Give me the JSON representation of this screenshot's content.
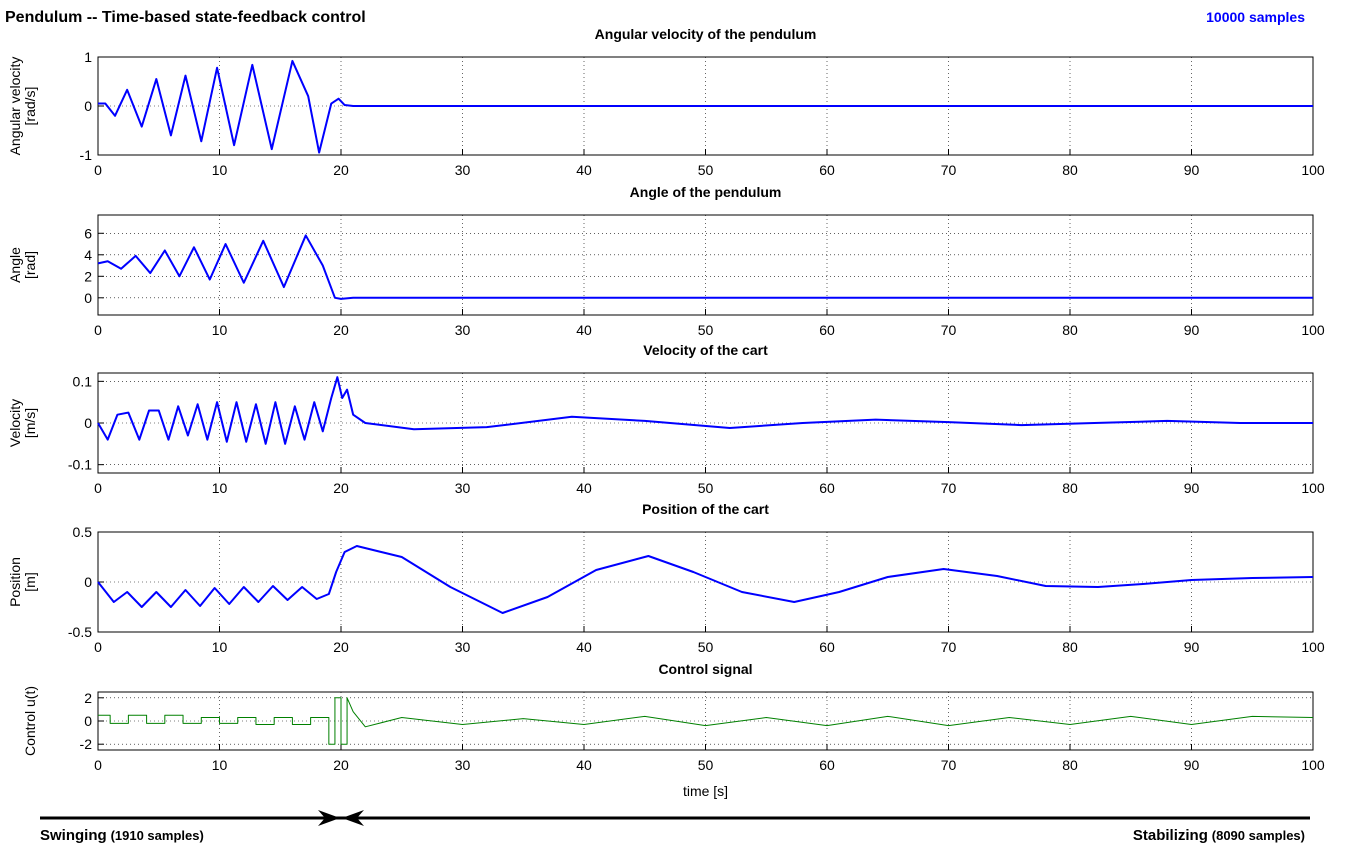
{
  "header": {
    "title": "Pendulum -- Time-based state-feedback control",
    "samples": "10000 samples"
  },
  "chart_data": [
    {
      "type": "line",
      "title": "Angular velocity of the pendulum",
      "ylabel": [
        "Angular velocity",
        "[rad/s]"
      ],
      "xlim": [
        0,
        100
      ],
      "xticks": [
        0,
        10,
        20,
        30,
        40,
        50,
        60,
        70,
        80,
        90,
        100
      ],
      "ylim": [
        -1,
        1
      ],
      "yticks": [
        -1,
        0,
        1
      ],
      "grid": true,
      "x": [
        0,
        0.6,
        1.4,
        2.4,
        3.6,
        4.8,
        6.0,
        7.2,
        8.5,
        9.8,
        11.2,
        12.7,
        14.3,
        16.0,
        17.3,
        18.2,
        19.2,
        19.8,
        20.3,
        21,
        30,
        40,
        50,
        60,
        70,
        80,
        90,
        100
      ],
      "series": [
        {
          "color": "#0000ff",
          "values": [
            0.05,
            0.05,
            -0.2,
            0.33,
            -0.42,
            0.55,
            -0.6,
            0.62,
            -0.72,
            0.78,
            -0.8,
            0.84,
            -0.88,
            0.92,
            0.2,
            -0.95,
            0.05,
            0.15,
            0.02,
            0,
            0,
            0,
            0,
            0,
            0,
            0,
            0,
            0
          ]
        }
      ]
    },
    {
      "type": "line",
      "title": "Angle of the pendulum",
      "ylabel": [
        "Angle",
        "[rad]"
      ],
      "xlim": [
        0,
        100
      ],
      "xticks": [
        0,
        10,
        20,
        30,
        40,
        50,
        60,
        70,
        80,
        90,
        100
      ],
      "ylim": [
        -1.6,
        7.7
      ],
      "yticks": [
        0,
        2,
        4,
        6
      ],
      "grid": true,
      "x": [
        0,
        0.8,
        1.9,
        3.1,
        4.3,
        5.5,
        6.7,
        7.9,
        9.2,
        10.5,
        12,
        13.6,
        15.3,
        17.1,
        18.5,
        19.5,
        20,
        21,
        100
      ],
      "series": [
        {
          "color": "#0000ff",
          "values": [
            3.2,
            3.4,
            2.7,
            3.9,
            2.3,
            4.4,
            2.0,
            4.7,
            1.7,
            5.0,
            1.4,
            5.3,
            1.0,
            5.8,
            3,
            0,
            -0.1,
            0,
            0
          ]
        }
      ]
    },
    {
      "type": "line",
      "title": "Velocity of the cart",
      "ylabel": [
        "Velocity",
        "[m/s]"
      ],
      "xlim": [
        0,
        100
      ],
      "xticks": [
        0,
        10,
        20,
        30,
        40,
        50,
        60,
        70,
        80,
        90,
        100
      ],
      "ylim": [
        -0.12,
        0.12
      ],
      "yticks": [
        -0.1,
        0,
        0.1
      ],
      "grid": true,
      "x": [
        0,
        0.8,
        1.6,
        2.5,
        3.4,
        4.2,
        5,
        5.8,
        6.6,
        7.4,
        8.2,
        9,
        9.8,
        10.6,
        11.4,
        12.2,
        13,
        13.8,
        14.6,
        15.4,
        16.2,
        17,
        17.8,
        18.5,
        19.2,
        19.7,
        20.1,
        20.5,
        21,
        22,
        26,
        32,
        39,
        45,
        52,
        58,
        64,
        70,
        76,
        82,
        88,
        94,
        100
      ],
      "series": [
        {
          "color": "#0000ff",
          "values": [
            0,
            -0.04,
            0.02,
            0.025,
            -0.04,
            0.03,
            0.03,
            -0.04,
            0.04,
            -0.03,
            0.045,
            -0.04,
            0.05,
            -0.045,
            0.05,
            -0.045,
            0.045,
            -0.05,
            0.05,
            -0.05,
            0.04,
            -0.04,
            0.05,
            -0.02,
            0.06,
            0.11,
            0.06,
            0.08,
            0.02,
            0,
            -0.015,
            -0.01,
            0.015,
            0.005,
            -0.012,
            0,
            0.008,
            0.002,
            -0.005,
            0,
            0.005,
            0,
            0
          ]
        }
      ]
    },
    {
      "type": "line",
      "title": "Position of the cart",
      "ylabel": [
        "Position",
        "[m]"
      ],
      "xlim": [
        0,
        100
      ],
      "xticks": [
        0,
        10,
        20,
        30,
        40,
        50,
        60,
        70,
        80,
        90,
        100
      ],
      "ylim": [
        -0.5,
        0.5
      ],
      "yticks": [
        -0.5,
        0,
        0.5
      ],
      "grid": true,
      "x": [
        0,
        1.3,
        2.4,
        3.6,
        4.8,
        6,
        7.2,
        8.4,
        9.6,
        10.8,
        12,
        13.2,
        14.4,
        15.6,
        16.8,
        18,
        19,
        19.6,
        20.3,
        21.3,
        25,
        29,
        33.3,
        37,
        41,
        45.3,
        49,
        53,
        57.3,
        61,
        65,
        69.6,
        74,
        78,
        82.3,
        86,
        90,
        95,
        100
      ],
      "series": [
        {
          "color": "#0000ff",
          "values": [
            0,
            -0.2,
            -0.1,
            -0.25,
            -0.1,
            -0.25,
            -0.08,
            -0.24,
            -0.06,
            -0.22,
            -0.05,
            -0.2,
            -0.04,
            -0.18,
            -0.05,
            -0.17,
            -0.12,
            0.1,
            0.3,
            0.36,
            0.25,
            -0.05,
            -0.31,
            -0.15,
            0.12,
            0.26,
            0.1,
            -0.1,
            -0.2,
            -0.1,
            0.05,
            0.13,
            0.06,
            -0.04,
            -0.05,
            -0.02,
            0.02,
            0.04,
            0.05
          ]
        }
      ]
    },
    {
      "type": "line",
      "title": "Control signal",
      "ylabel": [
        "Control u(t)"
      ],
      "xlabel": "time [s]",
      "xlim": [
        0,
        100
      ],
      "xticks": [
        0,
        10,
        20,
        30,
        40,
        50,
        60,
        70,
        80,
        90,
        100
      ],
      "ylim": [
        -2.5,
        2.5
      ],
      "yticks": [
        -2,
        0,
        2
      ],
      "grid": true,
      "x": [
        0,
        1,
        1,
        2.5,
        2.5,
        4,
        4,
        5.5,
        5.5,
        7,
        7,
        8.5,
        8.5,
        10,
        10,
        11.5,
        11.5,
        13,
        13,
        14.5,
        14.5,
        16,
        16,
        17.5,
        17.5,
        19,
        19,
        19.5,
        19.5,
        20,
        20,
        20.5,
        20.5,
        21,
        22,
        25,
        30,
        35,
        40,
        45,
        50,
        55,
        60,
        65,
        70,
        75,
        80,
        85,
        90,
        95,
        100
      ],
      "series": [
        {
          "color": "#008000",
          "values": [
            0.5,
            0.5,
            -0.2,
            -0.2,
            0.5,
            0.5,
            -0.2,
            -0.2,
            0.5,
            0.5,
            -0.2,
            -0.2,
            0.3,
            0.3,
            -0.2,
            -0.2,
            0.3,
            0.3,
            -0.3,
            -0.3,
            0.3,
            0.3,
            -0.3,
            -0.3,
            0.3,
            0.3,
            -2,
            -2,
            2,
            2,
            -2,
            -2,
            2,
            0.8,
            -0.5,
            0.3,
            -0.3,
            0.2,
            -0.3,
            0.4,
            -0.4,
            0.3,
            -0.4,
            0.4,
            -0.4,
            0.3,
            -0.3,
            0.4,
            -0.3,
            0.4,
            0.3
          ]
        }
      ]
    }
  ],
  "footer": {
    "left": "Swinging",
    "left_count": "(1910 samples)",
    "right": "Stabilizing",
    "right_count": "(8090 samples)"
  }
}
